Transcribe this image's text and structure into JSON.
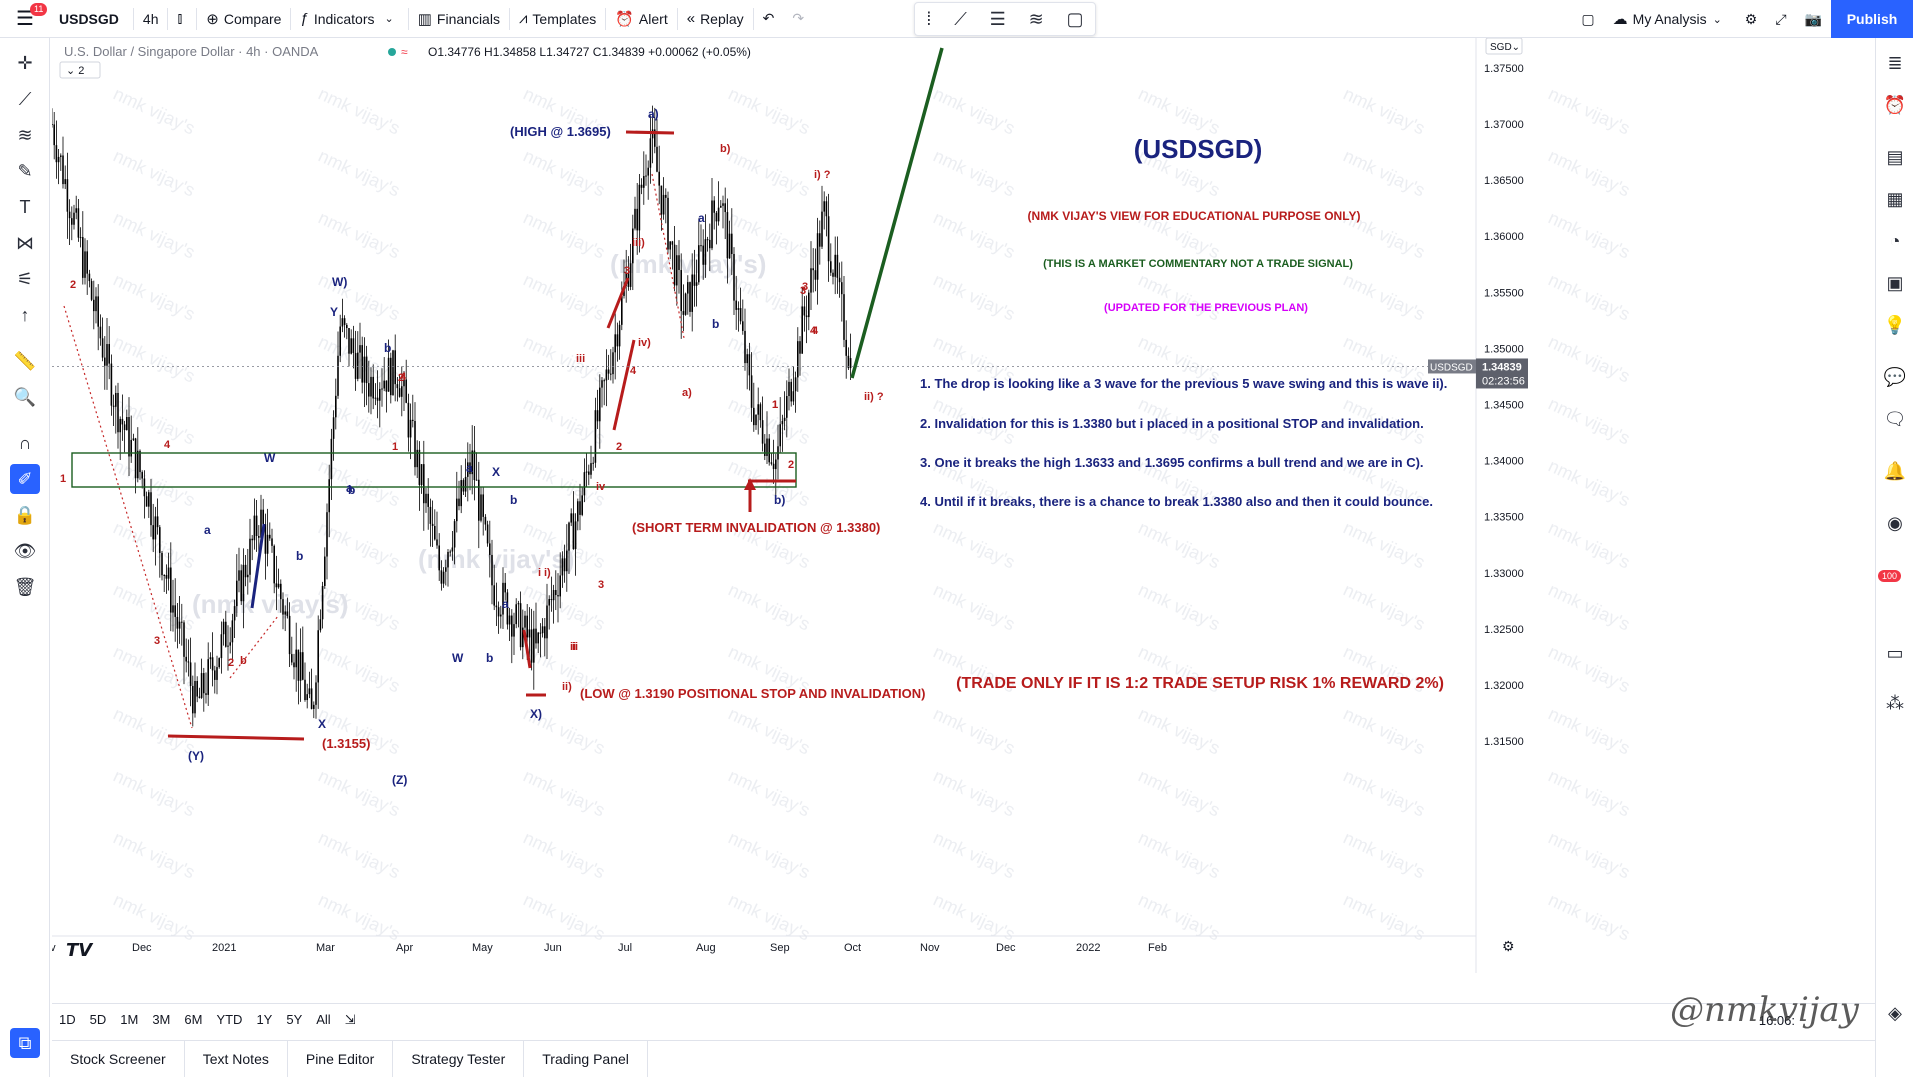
{
  "toolbar": {
    "menu_badge": "11",
    "symbol": "USDSGD",
    "interval": "4h",
    "compare": "Compare",
    "indicators": "Indicators",
    "financials": "Financials",
    "templates": "Templates",
    "alert": "Alert",
    "replay": "Replay",
    "my_analysis": "My Analysis",
    "publish": "Publish"
  },
  "legend": {
    "title": "U.S. Dollar / Singapore Dollar · 4h · OANDA",
    "ohlc": "O1.34776 H1.34858 L1.34727 C1.34839 +0.00062 (+0.05%)",
    "indicator_count": "2"
  },
  "price_axis": {
    "currency": "SGD",
    "ticks": [
      "1.37500",
      "1.37000",
      "1.36500",
      "1.36000",
      "1.35500",
      "1.35000",
      "1.34500",
      "1.34000",
      "1.33500",
      "1.33000",
      "1.32500",
      "1.32000",
      "1.31500"
    ],
    "last_label": "USDSGD",
    "last_price": "1.34839",
    "countdown": "02:23:56"
  },
  "time_axis": {
    "labels": [
      "ov",
      "Dec",
      "2021",
      "Mar",
      "Apr",
      "May",
      "Jun",
      "Jul",
      "Aug",
      "Sep",
      "Oct",
      "Nov",
      "Dec",
      "2022",
      "Feb"
    ]
  },
  "chart_data": {
    "type": "candlestick",
    "series": [
      {
        "name": "USDSGD",
        "x": [
          "2020-11",
          "2020-12-01",
          "2020-12-15",
          "2021-01-01",
          "2021-01-15",
          "2021-02-01",
          "2021-02-15",
          "2021-03-01",
          "2021-03-15",
          "2021-04-01",
          "2021-04-15",
          "2021-05-01",
          "2021-05-15",
          "2021-06-01",
          "2021-06-15",
          "2021-07-01",
          "2021-07-15",
          "2021-08-01",
          "2021-08-15",
          "2021-09-01",
          "2021-09-15",
          "2021-10-01",
          "2021-10-15"
        ],
        "values": [
          1.37,
          1.345,
          1.337,
          1.318,
          1.325,
          1.335,
          1.317,
          1.352,
          1.347,
          1.348,
          1.33,
          1.34,
          1.329,
          1.323,
          1.336,
          1.355,
          1.369,
          1.353,
          1.364,
          1.345,
          1.34,
          1.362,
          1.348
        ]
      }
    ],
    "ylim": [
      1.31,
      1.38
    ],
    "annotations": {
      "title": "(USDSGD)",
      "disclaimer": "(NMK VIJAY'S VIEW FOR EDUCATIONAL PURPOSE ONLY)",
      "commentary": "(THIS IS A MARKET COMMENTARY NOT A TRADE SIGNAL)",
      "updated": "(UPDATED FOR THE PREVIOUS PLAN)",
      "points": [
        "1. The drop is looking like a 3 wave for the previous 5 wave swing and this is wave ii).",
        "2. Invalidation for this is 1.3380 but i placed in a positional STOP and invalidation.",
        "3. One it breaks the high 1.3633 and 1.3695 confirms a bull trend and we are in C).",
        "4. Until if it breaks, there is a chance to break 1.3380 also and then it could bounce."
      ],
      "trade_rule": "(TRADE ONLY IF IT IS 1:2 TRADE SETUP RISK 1% REWARD 2%)",
      "high_label": "(HIGH @ 1.3695)",
      "short_inv": "(SHORT TERM INVALIDATION @ 1.3380)",
      "low_label": "(LOW @ 1.3190 POSITIONAL STOP AND INVALIDATION)",
      "low_price": "(1.3155)",
      "watermark": "nmk vijay's",
      "big_wm": "(nmk vijay's)",
      "waves_blue": [
        "W)",
        "Y",
        "b",
        "W",
        "a",
        "b",
        "a",
        "b",
        "X",
        "a",
        "b",
        "a",
        "W",
        "b",
        "X",
        "(Y)",
        "(Z)",
        "a)",
        "X)",
        "a",
        "b",
        "b)"
      ],
      "waves_red": [
        "2",
        "4",
        "1",
        "3",
        "2",
        "4",
        "1",
        "3",
        "b",
        "2",
        "1",
        "4",
        "3",
        "ii",
        "i)",
        "iii",
        "3",
        "iii)",
        "iv)",
        "4",
        "2",
        "iv",
        "ii)",
        "i",
        "b)",
        "a)",
        "i) ?",
        "3",
        "4",
        "1",
        "2",
        "ii) ?",
        "ii"
      ]
    },
    "colors": {
      "blue": "#1a237e",
      "red": "#b71c1c",
      "magenta": "#d500f9",
      "green": "#1b5e20",
      "box": "#1b5e20"
    }
  },
  "range": [
    "1D",
    "5D",
    "1M",
    "3M",
    "6M",
    "YTD",
    "1Y",
    "5Y",
    "All"
  ],
  "clock": "16:06:",
  "signature": "@nmkvijay",
  "panels": [
    "Stock Screener",
    "Text Notes",
    "Pine Editor",
    "Strategy Tester",
    "Trading Panel"
  ]
}
